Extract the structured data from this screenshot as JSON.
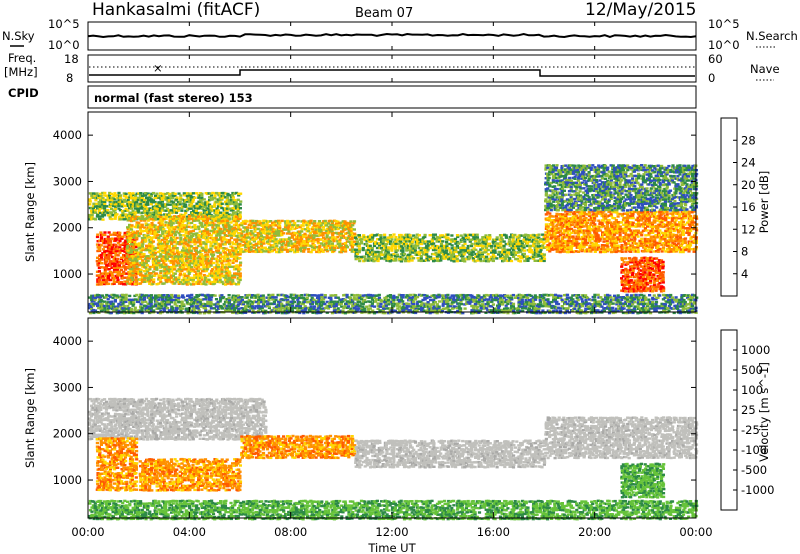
{
  "header": {
    "station": "Hankasalmi (fitACF)",
    "beam": "Beam 07",
    "date": "12/May/2015"
  },
  "noise_panel": {
    "left_label": "N.Sky",
    "right_label": "N.Search",
    "left_ticks": [
      "10^5",
      "10^0"
    ],
    "right_ticks": [
      "10^5",
      "10^0"
    ]
  },
  "freq_panel": {
    "left_label_1": "Freq.",
    "left_label_2": "[MHz]",
    "left_ticks": [
      "18",
      "8"
    ],
    "right_label": "Nave",
    "right_ticks": [
      "60",
      "0"
    ]
  },
  "cpid": {
    "label": "CPID",
    "text": "normal (fast stereo) 153"
  },
  "time_axis": {
    "ticks": [
      "00:00",
      "04:00",
      "08:00",
      "12:00",
      "16:00",
      "20:00",
      "00:00"
    ],
    "label": "Time UT"
  },
  "chart_data": [
    {
      "type": "heatmap",
      "title": "",
      "xlabel": "Time UT",
      "ylabel": "Slant Range [km]",
      "xlim": [
        0,
        24
      ],
      "ylim": [
        180,
        4500
      ],
      "y_ticks": [
        1000,
        2000,
        3000,
        4000
      ],
      "colorbar": {
        "label": "Power [dB]",
        "ticks": [
          4,
          8,
          12,
          16,
          20,
          24,
          28
        ],
        "range": [
          0,
          32
        ],
        "colors": [
          "#0000ff",
          "#2f4fbf",
          "#2d8a46",
          "#8fbc3a",
          "#ffd700",
          "#ff9000",
          "#ff5a00",
          "#ff0000"
        ]
      },
      "echo_regions": [
        {
          "t": [
            0.3,
            1.9
          ],
          "r": [
            800,
            1950
          ],
          "level": 6
        },
        {
          "t": [
            0.0,
            6.0
          ],
          "r": [
            2200,
            2800
          ],
          "level": 3
        },
        {
          "t": [
            1.5,
            6.0
          ],
          "r": [
            800,
            2300
          ],
          "level": 4
        },
        {
          "t": [
            6.0,
            10.5
          ],
          "r": [
            1500,
            2200
          ],
          "level": 4
        },
        {
          "t": [
            10.5,
            18.0
          ],
          "r": [
            1300,
            1900
          ],
          "level": 3
        },
        {
          "t": [
            18.0,
            24.0
          ],
          "r": [
            1500,
            2400
          ],
          "level": 5
        },
        {
          "t": [
            18.0,
            24.0
          ],
          "r": [
            2400,
            3400
          ],
          "level": 2
        },
        {
          "t": [
            21.0,
            22.7
          ],
          "r": [
            650,
            1400
          ],
          "level": 6
        },
        {
          "t": [
            0.0,
            24.0
          ],
          "r": [
            180,
            600
          ],
          "level": 2
        }
      ]
    },
    {
      "type": "heatmap",
      "title": "",
      "xlabel": "Time UT",
      "ylabel": "Slant Range [km]",
      "xlim": [
        0,
        24
      ],
      "ylim": [
        180,
        4500
      ],
      "y_ticks": [
        1000,
        2000,
        3000,
        4000
      ],
      "colorbar": {
        "label": "Velocity [m s^-1]",
        "ticks": [
          1000,
          500,
          100,
          25,
          -25,
          -100,
          -500,
          -1000
        ],
        "colors": [
          "#1f3fbf",
          "#2f6fa0",
          "#2d8a46",
          "#66c33a",
          "#c0c0c0",
          "#ffd700",
          "#ff9000",
          "#ff5a00",
          "#ff0000"
        ]
      },
      "echo_regions": [
        {
          "t": [
            0.0,
            7.0
          ],
          "r": [
            1900,
            2800
          ],
          "velocity": "ground scatter"
        },
        {
          "t": [
            0.3,
            1.9
          ],
          "r": [
            800,
            1950
          ],
          "velocity": -300
        },
        {
          "t": [
            2.0,
            6.0
          ],
          "r": [
            800,
            1500
          ],
          "velocity": -200
        },
        {
          "t": [
            6.0,
            10.5
          ],
          "r": [
            1500,
            2000
          ],
          "velocity": -200
        },
        {
          "t": [
            10.5,
            18.0
          ],
          "r": [
            1300,
            1900
          ],
          "velocity": "ground scatter"
        },
        {
          "t": [
            18.0,
            24.0
          ],
          "r": [
            1500,
            2400
          ],
          "velocity": "ground scatter"
        },
        {
          "t": [
            21.0,
            22.7
          ],
          "r": [
            650,
            1400
          ],
          "velocity": 200
        },
        {
          "t": [
            0.0,
            24.0
          ],
          "r": [
            180,
            600
          ],
          "velocity": 150
        }
      ]
    }
  ]
}
